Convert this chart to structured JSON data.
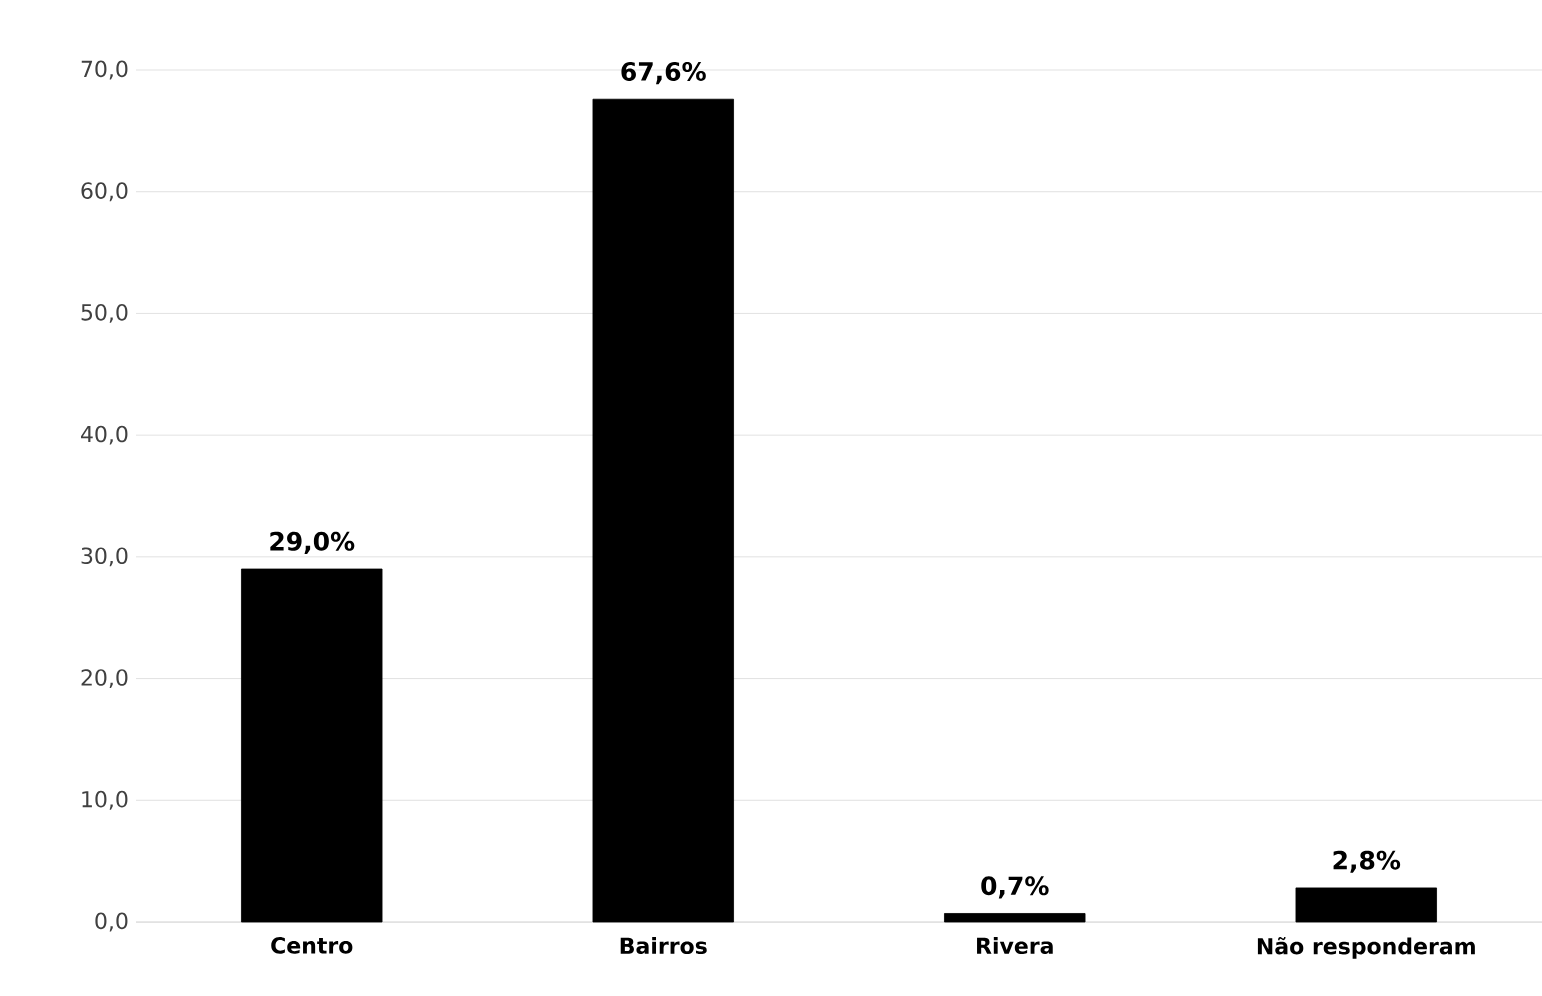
{
  "chart_data": {
    "type": "bar",
    "categories": [
      "Centro",
      "Bairros",
      "Rivera",
      "Não responderam"
    ],
    "values": [
      29.0,
      67.6,
      0.7,
      2.8
    ],
    "value_labels": [
      "29,0%",
      "67,6%",
      "0,7%",
      "2,8%"
    ],
    "color": "#000000",
    "ylim": [
      0,
      70
    ],
    "yticks": [
      {
        "value": 0,
        "label": "0,0"
      },
      {
        "value": 10,
        "label": "10,0"
      },
      {
        "value": 20,
        "label": "20,0"
      },
      {
        "value": 30,
        "label": "30,0"
      },
      {
        "value": 40,
        "label": "40,0"
      },
      {
        "value": 50,
        "label": "50,0"
      },
      {
        "value": 60,
        "label": "60,0"
      },
      {
        "value": 70,
        "label": "70,0"
      }
    ],
    "grid": "y"
  }
}
